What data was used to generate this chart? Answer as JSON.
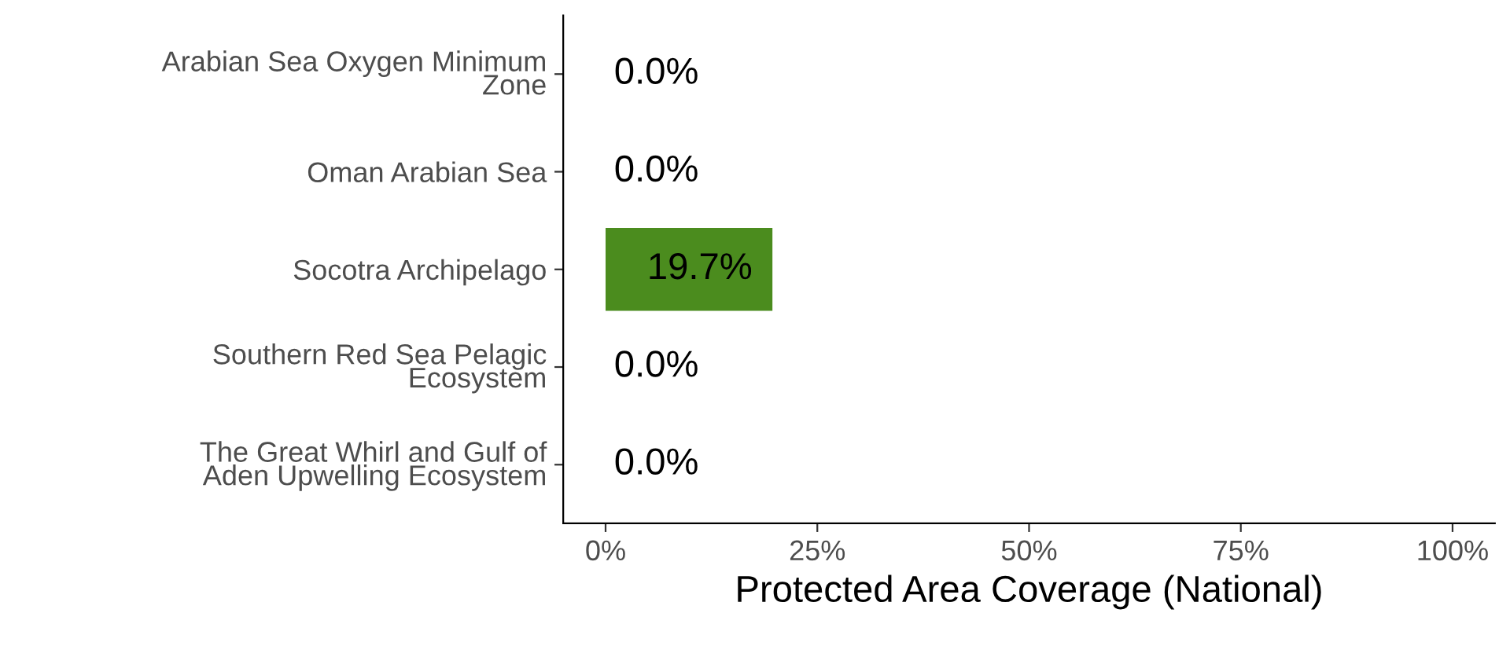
{
  "chart_data": {
    "type": "bar",
    "orientation": "horizontal",
    "xlabel": "Protected Area Coverage (National)",
    "categories": [
      "Arabian Sea Oxygen Minimum\nZone",
      "Oman Arabian Sea",
      "Socotra Archipelago",
      "Southern Red Sea Pelagic\nEcosystem",
      "The Great Whirl and Gulf of\nAden Upwelling Ecosystem"
    ],
    "values": [
      0.0,
      0.0,
      19.7,
      0.0,
      0.0
    ],
    "value_labels": [
      "0.0%",
      "0.0%",
      "19.7%",
      "0.0%",
      "0.0%"
    ],
    "color": "#4b8c1e",
    "xlim": [
      -5,
      105
    ],
    "xticks": [
      {
        "value": 0,
        "label": "0%"
      },
      {
        "value": 25,
        "label": "25%"
      },
      {
        "value": 50,
        "label": "50%"
      },
      {
        "value": 75,
        "label": "75%"
      },
      {
        "value": 100,
        "label": "100%"
      }
    ],
    "grid": false,
    "legend": false
  }
}
